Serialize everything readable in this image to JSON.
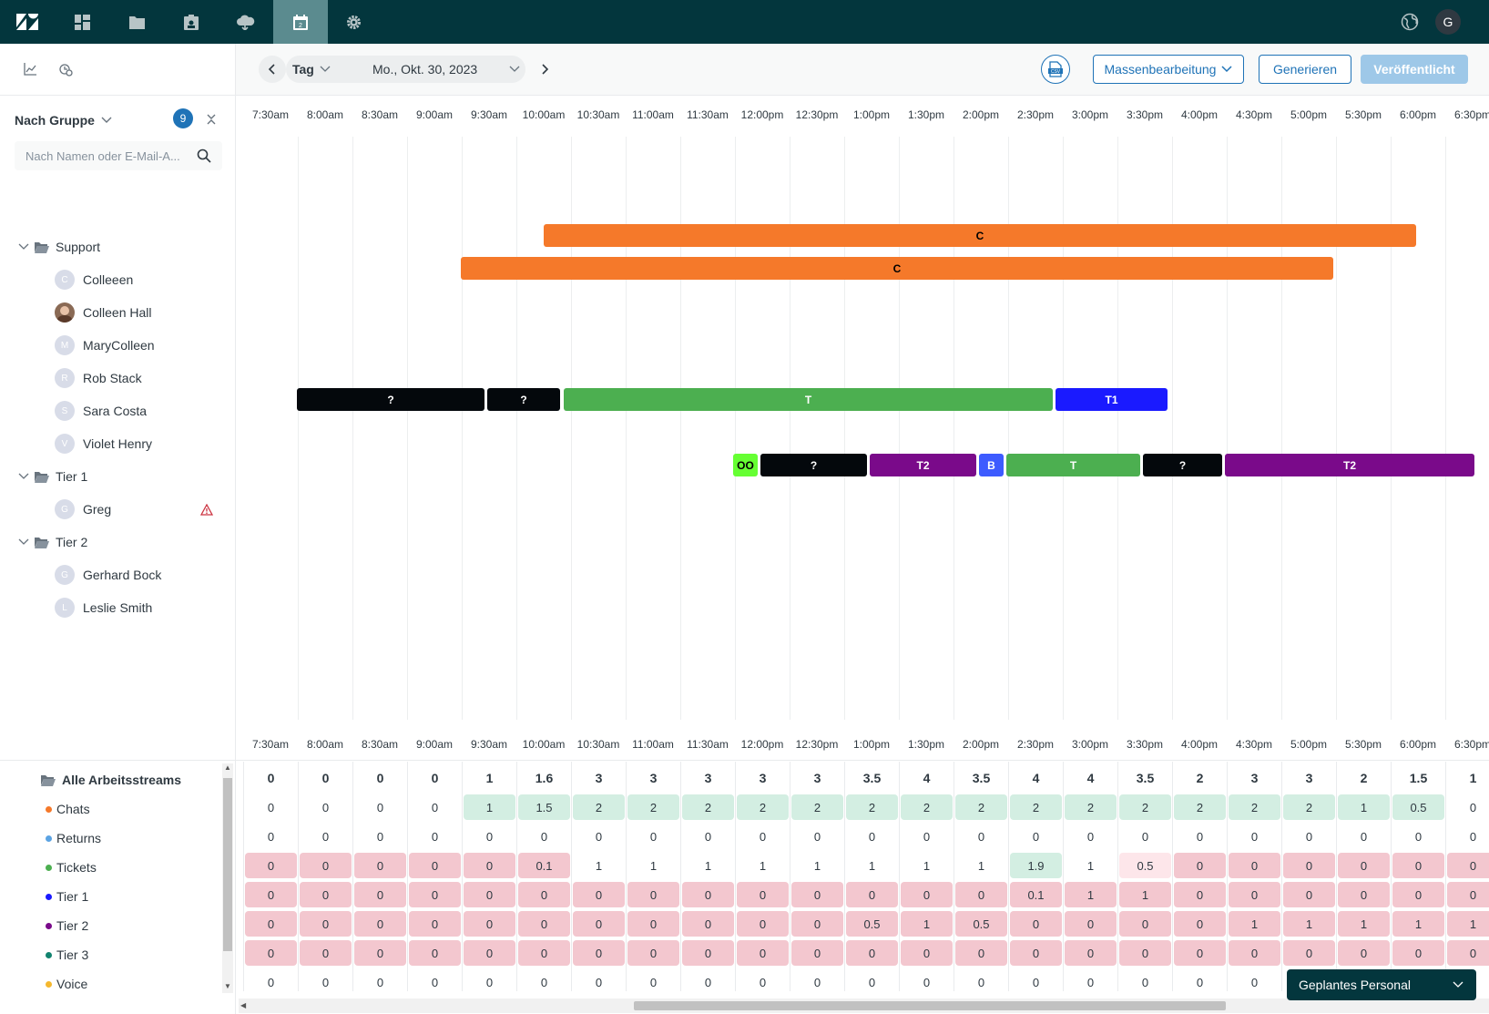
{
  "topbar": {
    "icons": [
      "zendesk-logo-icon",
      "dashboard-icon",
      "folder-icon",
      "profile-card-icon",
      "cloud-icon",
      "calendar-icon",
      "gear-icon"
    ],
    "user_initial": "G",
    "colors": {
      "bg": "#03363d",
      "active": "#5b8b8f"
    }
  },
  "toolbar": {
    "view_label": "Tag",
    "date_label": "Mo., Okt. 30, 2023",
    "csv_label": "CSV",
    "bulk_edit_label": "Massenbearbeitung",
    "generate_label": "Generieren",
    "publish_label": "Veröffentlicht"
  },
  "sidebar": {
    "group_label": "Nach Gruppe",
    "count": "9",
    "search_placeholder": "Nach Namen oder E-Mail-A...",
    "groups": [
      {
        "name": "Support",
        "members": [
          {
            "name": "Colleeen",
            "initial": "C"
          },
          {
            "name": "Colleen Hall",
            "initial": ""
          },
          {
            "name": "MaryColleen",
            "initial": "M"
          },
          {
            "name": "Rob Stack",
            "initial": "R"
          },
          {
            "name": "Sara Costa",
            "initial": "S"
          },
          {
            "name": "Violet Henry",
            "initial": "V"
          }
        ]
      },
      {
        "name": "Tier 1",
        "members": [
          {
            "name": "Greg",
            "initial": "G"
          }
        ]
      },
      {
        "name": "Tier 2",
        "members": [
          {
            "name": "Gerhard Bock",
            "initial": "G"
          },
          {
            "name": "Leslie Smith",
            "initial": "L"
          }
        ]
      }
    ]
  },
  "times": [
    "7:30am",
    "8:00am",
    "8:30am",
    "9:00am",
    "9:30am",
    "10:00am",
    "10:30am",
    "11:00am",
    "11:30am",
    "12:00pm",
    "12:30pm",
    "1:00pm",
    "1:30pm",
    "2:00pm",
    "2:30pm",
    "3:00pm",
    "3:30pm",
    "4:00pm",
    "4:30pm",
    "5:00pm",
    "5:30pm",
    "6:00pm",
    "6:30pm"
  ],
  "shift_labels": {
    "c": "C",
    "q": "?",
    "t": "T",
    "t1": "T1",
    "oo": "OO",
    "t2": "T2",
    "b": "B"
  },
  "shift_colors": {
    "orange": "#f5792a",
    "black": "#04080c",
    "green": "#4caf50",
    "blue": "#1a1aff",
    "lime": "#66ff33",
    "purple": "#7a0a8a",
    "lightblue": "#3d5bff"
  },
  "workstreams": {
    "title": "Alle Arbeitsstreams",
    "rows": [
      {
        "name": "Chats",
        "color": "#f5792a"
      },
      {
        "name": "Returns",
        "color": "#5ba3e3"
      },
      {
        "name": "Tickets",
        "color": "#4caf50"
      },
      {
        "name": "Tier 1",
        "color": "#1a1aff"
      },
      {
        "name": "Tier 2",
        "color": "#7a0a8a"
      },
      {
        "name": "Tier 3",
        "color": "#12836f"
      },
      {
        "name": "Voice",
        "color": "#f5b82e"
      }
    ],
    "totals": [
      "0",
      "0",
      "0",
      "0",
      "1",
      "1.6",
      "3",
      "3",
      "3",
      "3",
      "3",
      "3.5",
      "4",
      "3.5",
      "4",
      "4",
      "3.5",
      "2",
      "3",
      "3",
      "2",
      "1.5",
      "1"
    ],
    "values": [
      [
        "0",
        "0",
        "0",
        "0",
        "1",
        "1.5",
        "2",
        "2",
        "2",
        "2",
        "2",
        "2",
        "2",
        "2",
        "2",
        "2",
        "2",
        "2",
        "2",
        "2",
        "1",
        "0.5",
        "0"
      ],
      [
        "0",
        "0",
        "0",
        "0",
        "0",
        "0",
        "0",
        "0",
        "0",
        "0",
        "0",
        "0",
        "0",
        "0",
        "0",
        "0",
        "0",
        "0",
        "0",
        "0",
        "0",
        "0",
        "0"
      ],
      [
        "0",
        "0",
        "0",
        "0",
        "0",
        "0.1",
        "1",
        "1",
        "1",
        "1",
        "1",
        "1",
        "1",
        "1",
        "1.9",
        "1",
        "0.5",
        "0",
        "0",
        "0",
        "0",
        "0",
        "0"
      ],
      [
        "0",
        "0",
        "0",
        "0",
        "0",
        "0",
        "0",
        "0",
        "0",
        "0",
        "0",
        "0",
        "0",
        "0",
        "0.1",
        "1",
        "1",
        "0",
        "0",
        "0",
        "0",
        "0",
        "0"
      ],
      [
        "0",
        "0",
        "0",
        "0",
        "0",
        "0",
        "0",
        "0",
        "0",
        "0",
        "0",
        "0.5",
        "1",
        "0.5",
        "0",
        "0",
        "0",
        "0",
        "1",
        "1",
        "1",
        "1",
        "1"
      ],
      [
        "0",
        "0",
        "0",
        "0",
        "0",
        "0",
        "0",
        "0",
        "0",
        "0",
        "0",
        "0",
        "0",
        "0",
        "0",
        "0",
        "0",
        "0",
        "0",
        "0",
        "0",
        "0",
        "0"
      ],
      [
        "0",
        "0",
        "0",
        "0",
        "0",
        "0",
        "0",
        "0",
        "0",
        "0",
        "0",
        "0",
        "0",
        "0",
        "0",
        "0",
        "0",
        "0",
        "0",
        "",
        "",
        "",
        ""
      ]
    ]
  },
  "footer": {
    "staff_select": "Geplantes Personal"
  }
}
